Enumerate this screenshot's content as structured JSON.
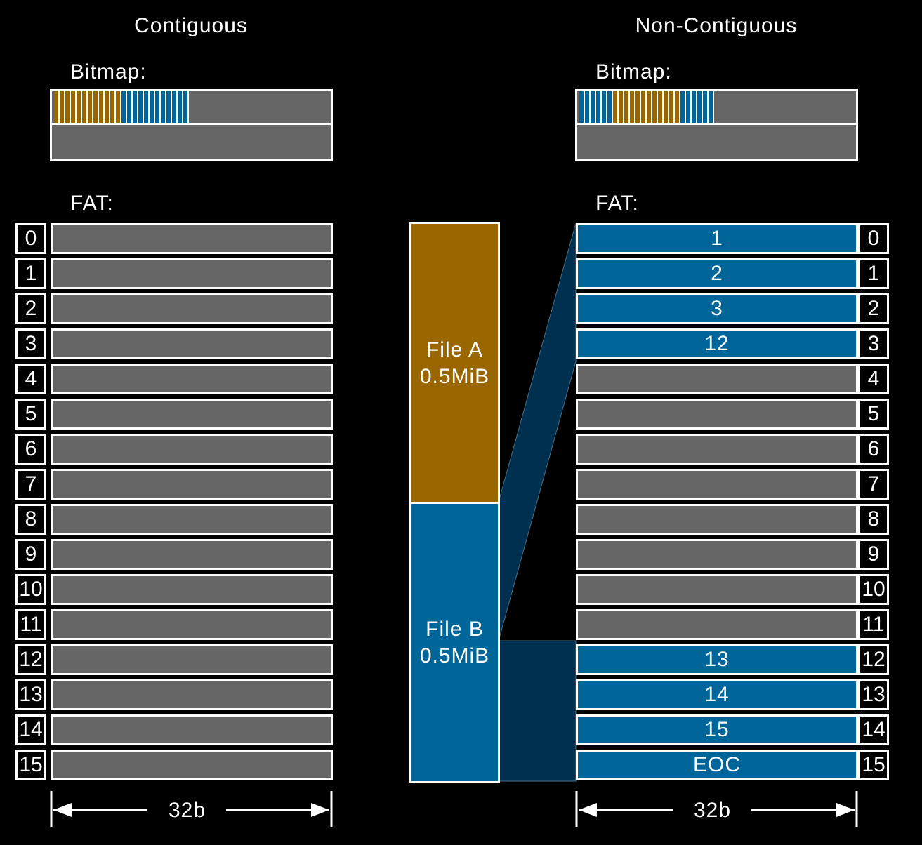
{
  "colors": {
    "file_a": "#996600",
    "file_b": "#006699",
    "empty": "#666666"
  },
  "contiguous": {
    "title": "Contiguous",
    "bitmap_label": "Bitmap:",
    "fat_label": "FAT:",
    "bitmap_a_bits": 12,
    "bitmap_b_bits": 12,
    "indices": [
      "0",
      "1",
      "2",
      "3",
      "4",
      "5",
      "6",
      "7",
      "8",
      "9",
      "10",
      "11",
      "12",
      "13",
      "14",
      "15"
    ],
    "width_label": "32b"
  },
  "noncontiguous": {
    "title": "Non-Contiguous",
    "bitmap_label": "Bitmap:",
    "fat_label": "FAT:",
    "bitmap_groups": [
      {
        "file": "b",
        "bits": 6
      },
      {
        "file": "a",
        "bits": 12
      },
      {
        "file": "b",
        "bits": 6
      }
    ],
    "entries": [
      {
        "index": "0",
        "value": "1",
        "file": "b"
      },
      {
        "index": "1",
        "value": "2",
        "file": "b"
      },
      {
        "index": "2",
        "value": "3",
        "file": "b"
      },
      {
        "index": "3",
        "value": "12",
        "file": "b"
      },
      {
        "index": "4",
        "value": "",
        "file": ""
      },
      {
        "index": "5",
        "value": "",
        "file": ""
      },
      {
        "index": "6",
        "value": "",
        "file": ""
      },
      {
        "index": "7",
        "value": "",
        "file": ""
      },
      {
        "index": "8",
        "value": "",
        "file": ""
      },
      {
        "index": "9",
        "value": "",
        "file": ""
      },
      {
        "index": "10",
        "value": "",
        "file": ""
      },
      {
        "index": "11",
        "value": "",
        "file": ""
      },
      {
        "index": "12",
        "value": "13",
        "file": "b"
      },
      {
        "index": "13",
        "value": "14",
        "file": "b"
      },
      {
        "index": "14",
        "value": "15",
        "file": "b"
      },
      {
        "index": "15",
        "value": "EOC",
        "file": "b"
      }
    ],
    "width_label": "32b"
  },
  "files": {
    "a": {
      "name": "File A",
      "size": "0.5MiB"
    },
    "b": {
      "name": "File B",
      "size": "0.5MiB"
    }
  }
}
